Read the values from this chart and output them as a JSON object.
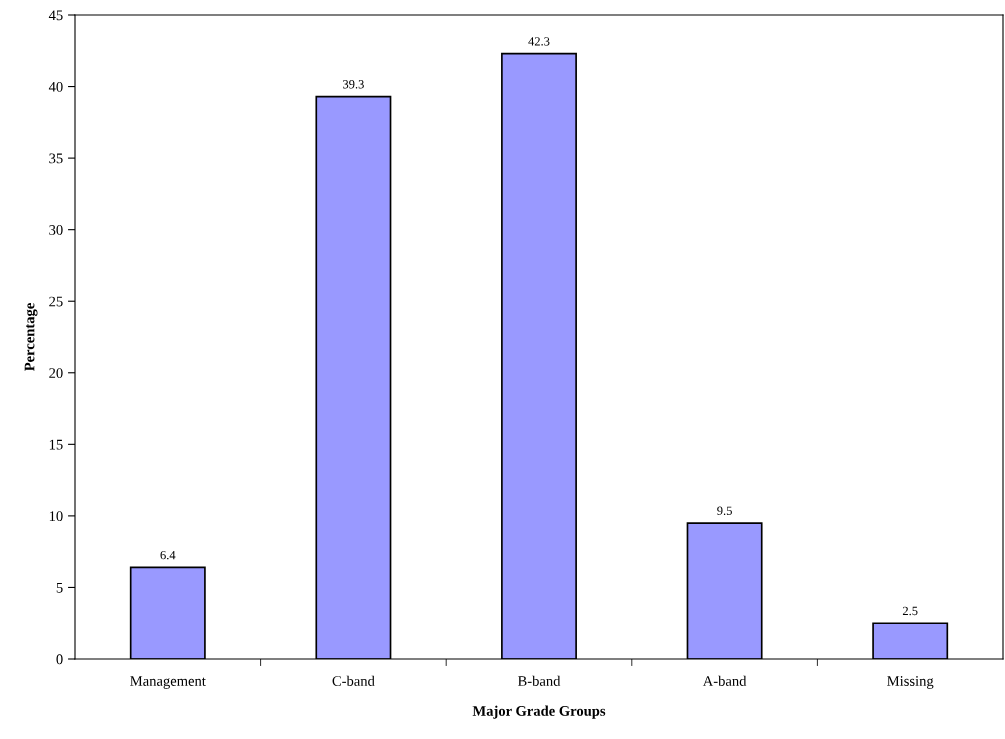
{
  "chart_data": {
    "type": "bar",
    "categories": [
      "Management",
      "C-band",
      "B-band",
      "A-band",
      "Missing"
    ],
    "values": [
      6.4,
      39.3,
      42.3,
      9.5,
      2.5
    ],
    "color": "#9999ff",
    "xlabel": "Major Grade Groups",
    "ylabel": "Percentage",
    "ylim": [
      0,
      45
    ],
    "yticks": [
      0,
      5,
      10,
      15,
      20,
      25,
      30,
      35,
      40,
      45
    ],
    "data_labels": true,
    "grid": false,
    "legend": false
  }
}
